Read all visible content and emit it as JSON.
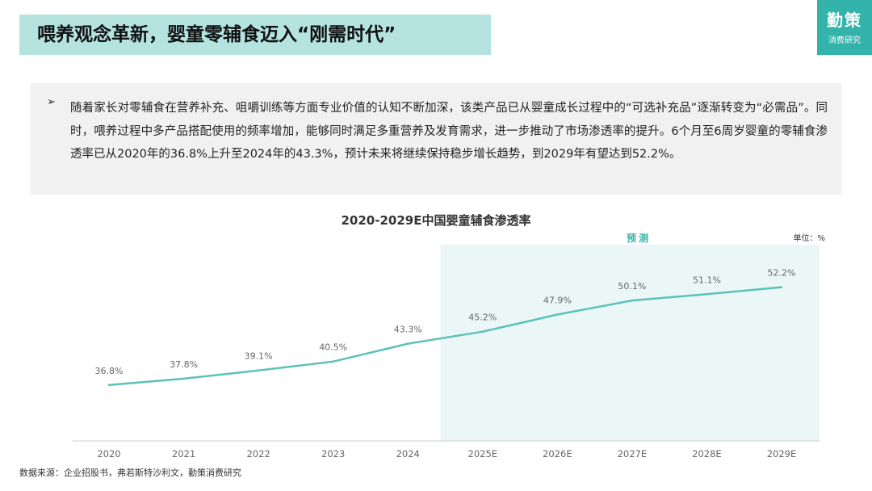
{
  "header": {
    "title": "喂养观念革新，婴童零辅食迈入“刚需时代”",
    "logo_name": "勤策",
    "logo_sub": "消费研究"
  },
  "summary": {
    "bullet": "➢",
    "text": "随着家长对零辅食在营养补充、咀嚼训练等方面专业价值的认知不断加深，该类产品已从婴童成长过程中的“可选补充品”逐渐转变为“必需品”。同时，喂养过程中多产品搭配使用的频率增加，能够同时满足多重营养及发育需求，进一步推动了市场渗透率的提升。6个月至6周岁婴童的零辅食渗透率已从2020年的36.8%上升至2024年的43.3%，预计未来将继续保持稳步增长趋势，到2029年有望达到52.2%。"
  },
  "chart_data": {
    "type": "line",
    "title": "2020-2029E中国婴童辅食渗透率",
    "unit_label": "单位：%",
    "forecast_label": "预测",
    "categories": [
      "2020",
      "2021",
      "2022",
      "2023",
      "2024",
      "2025E",
      "2026E",
      "2027E",
      "2028E",
      "2029E"
    ],
    "values": [
      36.8,
      37.8,
      39.1,
      40.5,
      43.3,
      45.2,
      47.9,
      50.1,
      51.1,
      52.2
    ],
    "data_labels": [
      "36.8%",
      "37.8%",
      "39.1%",
      "40.5%",
      "43.3%",
      "45.2%",
      "47.9%",
      "50.1%",
      "51.1%",
      "52.2%"
    ],
    "forecast_start_index": 5,
    "ylim": [
      28,
      58
    ],
    "xlabel": "",
    "ylabel": "",
    "grid": false,
    "colors": {
      "line": "#5cc2b8",
      "forecast_band": "#eaf7f6",
      "axis": "#cccccc",
      "label": "#666666"
    }
  },
  "footer": {
    "source": "数据来源：企业招股书，弗若斯特沙利文，勤策消费研究"
  }
}
